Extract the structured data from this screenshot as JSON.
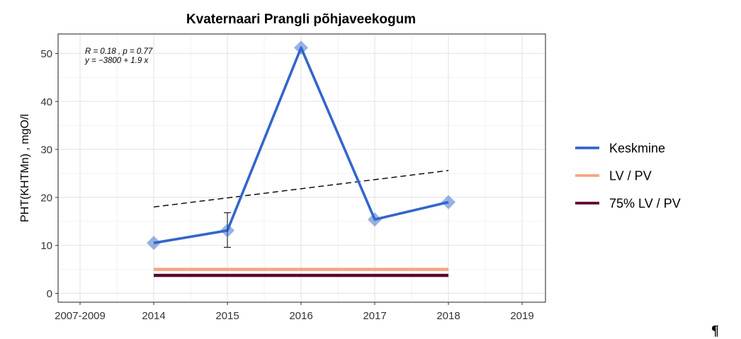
{
  "chart_data": {
    "type": "line",
    "title": "Kvaternaari Prangli põhjaveekogum",
    "xlabel": "",
    "ylabel": "PHT(KHTMn) , mgO/l",
    "categories": [
      "2007-2009",
      "2014",
      "2015",
      "2016",
      "2017",
      "2018",
      "2019"
    ],
    "ylim": [
      -2,
      54
    ],
    "yticks": [
      0,
      10,
      20,
      30,
      40,
      50
    ],
    "grid": true,
    "legend_position": "right",
    "series": [
      {
        "name": "Keskmine",
        "color": "#3366cc",
        "x": [
          "2014",
          "2015",
          "2016",
          "2017",
          "2018"
        ],
        "values": [
          10.5,
          13.1,
          51.2,
          15.4,
          19.0
        ],
        "error_bars": [
          {
            "x": "2015",
            "low": 9.6,
            "high": 16.8
          }
        ]
      },
      {
        "name": "LV / PV",
        "color": "#f4a582",
        "x": [
          "2014",
          "2018"
        ],
        "values": [
          5.0,
          5.0
        ]
      },
      {
        "name": "75% LV / PV",
        "color": "#5c0033",
        "x": [
          "2014",
          "2018"
        ],
        "values": [
          3.75,
          3.75
        ]
      }
    ],
    "trend": {
      "style": "dashed",
      "color": "#000000",
      "x": [
        "2014",
        "2018"
      ],
      "values": [
        18.0,
        25.6
      ],
      "annotation_line1": "R = 0.18 , p = 0.77",
      "annotation_line2": "y = −3800 + 1.9 x"
    }
  },
  "corner_mark": "¶"
}
